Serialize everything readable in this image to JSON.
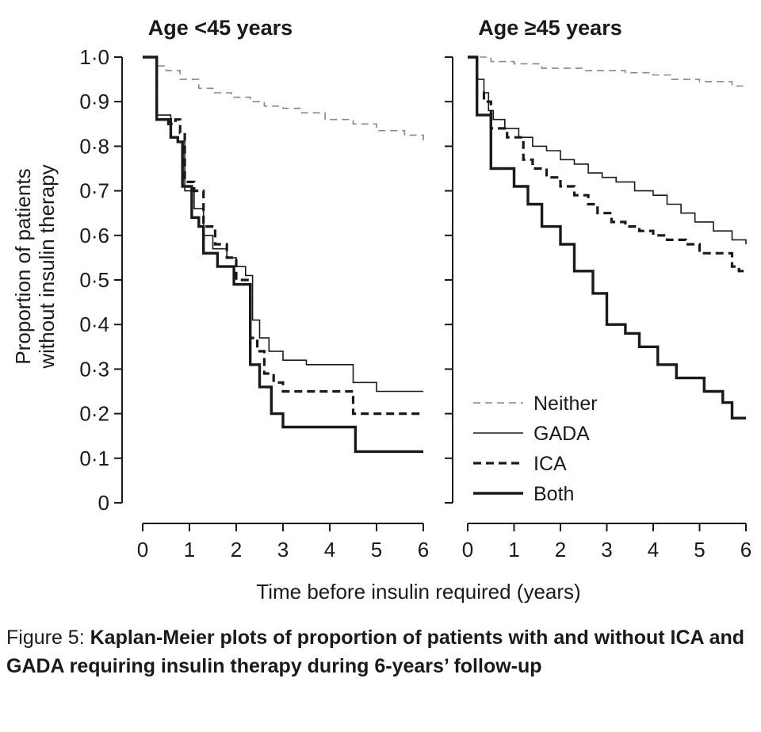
{
  "chart_data": [
    {
      "type": "line",
      "step": true,
      "title": "Age <45 years",
      "xlabel": "Time before insulin required (years)",
      "ylabel": "Proportion of patients without insulin therapy",
      "xlim": [
        0,
        6
      ],
      "ylim": [
        0,
        1
      ],
      "x_ticks": [
        "0",
        "1",
        "2",
        "3",
        "4",
        "5",
        "6"
      ],
      "y_ticks": [
        "0",
        "0·1",
        "0·2",
        "0·3",
        "0·4",
        "0·5",
        "0·6",
        "0·7",
        "0·8",
        "0·9",
        "1·0"
      ],
      "series": [
        {
          "name": "Neither",
          "style": "thin-dashed",
          "color": "#888888",
          "x": [
            0,
            0.3,
            0.5,
            0.8,
            1.2,
            1.5,
            1.9,
            2.3,
            2.6,
            3.0,
            3.4,
            3.9,
            4.5,
            5.0,
            5.6,
            6.0
          ],
          "y": [
            1.0,
            0.98,
            0.97,
            0.95,
            0.93,
            0.92,
            0.91,
            0.9,
            0.89,
            0.885,
            0.875,
            0.86,
            0.85,
            0.835,
            0.825,
            0.81
          ]
        },
        {
          "name": "GADA",
          "style": "thin-solid",
          "color": "#1a1a1a",
          "x": [
            0,
            0.3,
            0.6,
            0.75,
            0.9,
            1.1,
            1.3,
            1.5,
            1.8,
            2.0,
            2.2,
            2.35,
            2.5,
            2.7,
            3.0,
            3.5,
            4.5,
            5.0,
            6.0
          ],
          "y": [
            1.0,
            0.87,
            0.82,
            0.81,
            0.7,
            0.66,
            0.6,
            0.57,
            0.55,
            0.53,
            0.51,
            0.41,
            0.37,
            0.34,
            0.32,
            0.31,
            0.27,
            0.25,
            0.25
          ]
        },
        {
          "name": "ICA",
          "style": "thick-dashed",
          "color": "#1a1a1a",
          "x": [
            0,
            0.3,
            0.55,
            0.7,
            0.8,
            0.9,
            1.1,
            1.3,
            1.55,
            1.8,
            2.0,
            2.3,
            2.45,
            2.6,
            2.8,
            3.0,
            4.5,
            6.0
          ],
          "y": [
            1.0,
            0.86,
            0.85,
            0.86,
            0.83,
            0.72,
            0.7,
            0.62,
            0.58,
            0.55,
            0.5,
            0.37,
            0.34,
            0.29,
            0.27,
            0.25,
            0.2,
            0.2
          ]
        },
        {
          "name": "Both",
          "style": "thick-solid",
          "color": "#1a1a1a",
          "x": [
            0,
            0.3,
            0.6,
            0.75,
            0.85,
            1.05,
            1.2,
            1.3,
            1.6,
            1.95,
            2.3,
            2.5,
            2.75,
            3.0,
            4.55,
            6.0
          ],
          "y": [
            1.0,
            0.86,
            0.82,
            0.81,
            0.71,
            0.64,
            0.62,
            0.56,
            0.53,
            0.49,
            0.31,
            0.26,
            0.2,
            0.17,
            0.115,
            0.115
          ]
        }
      ]
    },
    {
      "type": "line",
      "step": true,
      "title": "Age ≥45 years",
      "xlabel": "Time before insulin required (years)",
      "xlim": [
        0,
        6
      ],
      "ylim": [
        0,
        1
      ],
      "x_ticks": [
        "0",
        "1",
        "2",
        "3",
        "4",
        "5",
        "6"
      ],
      "legend": {
        "position": "bottom-left",
        "entries": [
          "Neither",
          "GADA",
          "ICA",
          "Both"
        ]
      },
      "series": [
        {
          "name": "Neither",
          "style": "thin-dashed",
          "color": "#888888",
          "x": [
            0,
            0.5,
            1.0,
            1.6,
            2.5,
            3.4,
            4.0,
            4.4,
            5.0,
            5.7,
            6.0
          ],
          "y": [
            1.0,
            0.99,
            0.985,
            0.975,
            0.97,
            0.965,
            0.96,
            0.95,
            0.945,
            0.935,
            0.935
          ]
        },
        {
          "name": "GADA",
          "style": "thin-solid",
          "color": "#1a1a1a",
          "x": [
            0,
            0.2,
            0.35,
            0.45,
            0.55,
            0.8,
            1.1,
            1.4,
            1.7,
            2.0,
            2.3,
            2.6,
            2.9,
            3.2,
            3.6,
            4.0,
            4.3,
            4.6,
            4.9,
            5.3,
            5.7,
            6.0
          ],
          "y": [
            1.0,
            0.95,
            0.92,
            0.88,
            0.86,
            0.84,
            0.82,
            0.8,
            0.79,
            0.77,
            0.76,
            0.74,
            0.73,
            0.72,
            0.7,
            0.69,
            0.67,
            0.65,
            0.63,
            0.61,
            0.59,
            0.58
          ]
        },
        {
          "name": "ICA",
          "style": "thick-dashed",
          "color": "#1a1a1a",
          "x": [
            0,
            0.2,
            0.35,
            0.5,
            0.85,
            1.2,
            1.4,
            1.7,
            2.0,
            2.3,
            2.6,
            2.8,
            3.1,
            3.4,
            3.7,
            4.0,
            4.3,
            4.7,
            5.0,
            5.5,
            5.7,
            5.85,
            6.0
          ],
          "y": [
            1.0,
            0.92,
            0.9,
            0.84,
            0.82,
            0.77,
            0.75,
            0.73,
            0.71,
            0.69,
            0.67,
            0.65,
            0.63,
            0.62,
            0.61,
            0.6,
            0.59,
            0.58,
            0.56,
            0.56,
            0.53,
            0.52,
            0.52
          ]
        },
        {
          "name": "Both",
          "style": "thick-solid",
          "color": "#1a1a1a",
          "x": [
            0,
            0.2,
            0.5,
            1.0,
            1.3,
            1.6,
            2.0,
            2.3,
            2.7,
            3.0,
            3.4,
            3.7,
            4.1,
            4.5,
            5.1,
            5.5,
            5.7,
            6.0
          ],
          "y": [
            1.0,
            0.87,
            0.75,
            0.71,
            0.67,
            0.62,
            0.58,
            0.52,
            0.47,
            0.4,
            0.38,
            0.35,
            0.31,
            0.28,
            0.25,
            0.225,
            0.19,
            0.19
          ]
        }
      ]
    }
  ],
  "caption": {
    "label": "Figure 5: ",
    "text": "Kaplan-Meier plots of proportion of patients with and without ICA and GADA requiring insulin therapy during 6-years’ follow-up"
  },
  "colors": {
    "ink": "#1a1a1a",
    "neither_line": "#888888",
    "background": "#ffffff"
  }
}
